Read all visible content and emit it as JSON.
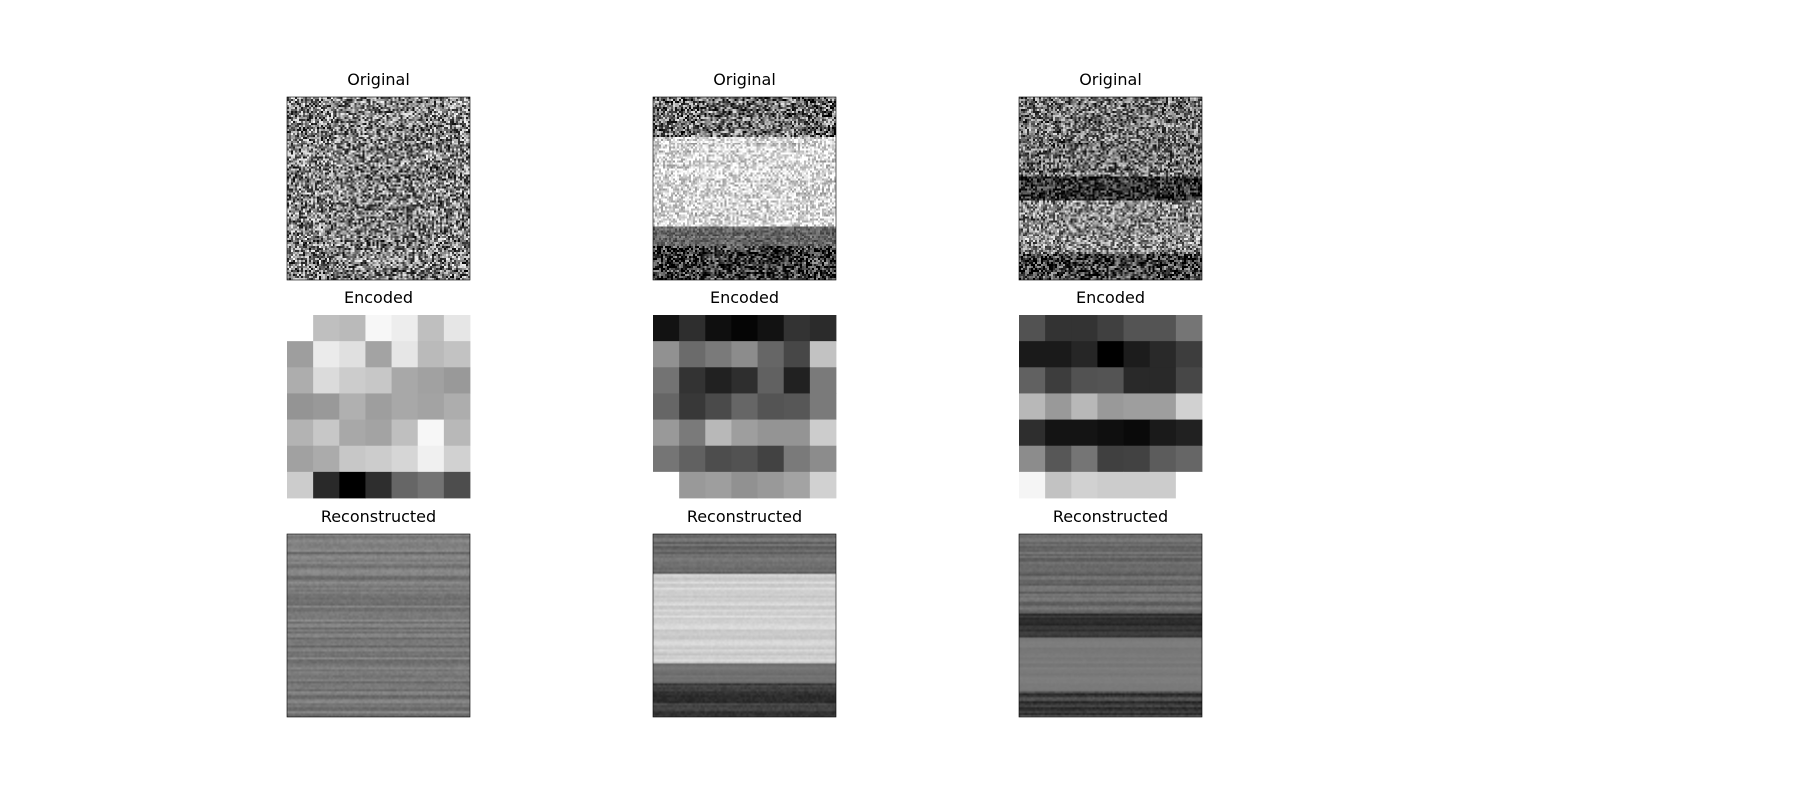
{
  "figure": {
    "background": "#ffffff",
    "rows": [
      {
        "row": "original",
        "title": "Original"
      },
      {
        "row": "encoded",
        "title": "Encoded"
      },
      {
        "row": "reconstructed",
        "title": "Reconstructed"
      }
    ]
  },
  "chart_data": {
    "type": "heatmap",
    "layout": "3 rows x 3 columns of grayscale image panels",
    "colormap": "gray",
    "samples": [
      {
        "original": {
          "pattern": "uniform random noise",
          "bands": [
            {
              "from": 0.0,
              "to": 1.0,
              "mean": 0.5,
              "contrast": 0.45
            }
          ]
        },
        "encoded": {
          "grid": [
            [
              1.0,
              0.75,
              0.73,
              0.97,
              0.93,
              0.75,
              0.9
            ],
            [
              0.62,
              0.92,
              0.88,
              0.64,
              0.9,
              0.73,
              0.76
            ],
            [
              0.68,
              0.86,
              0.8,
              0.78,
              0.66,
              0.63,
              0.6
            ],
            [
              0.58,
              0.6,
              0.69,
              0.62,
              0.66,
              0.64,
              0.68
            ],
            [
              0.7,
              0.78,
              0.66,
              0.64,
              0.75,
              0.97,
              0.72
            ],
            [
              0.63,
              0.67,
              0.78,
              0.8,
              0.84,
              0.94,
              0.82
            ],
            [
              0.8,
              0.16,
              0.0,
              0.18,
              0.4,
              0.45,
              0.3
            ]
          ]
        },
        "reconstructed": {
          "pattern": "smoothed noise",
          "bands": [
            {
              "from": 0.0,
              "to": 1.0,
              "mean": 0.47,
              "contrast": 0.12
            }
          ]
        }
      },
      {
        "original": {
          "pattern": "horizontal bands of noise",
          "bands": [
            {
              "from": 0.0,
              "to": 0.22,
              "mean": 0.42,
              "contrast": 0.45
            },
            {
              "from": 0.22,
              "to": 0.71,
              "mean": 0.85,
              "contrast": 0.25
            },
            {
              "from": 0.71,
              "to": 0.82,
              "mean": 0.4,
              "contrast": 0.15
            },
            {
              "from": 0.82,
              "to": 1.0,
              "mean": 0.22,
              "contrast": 0.4
            }
          ]
        },
        "encoded": {
          "grid": [
            [
              0.07,
              0.18,
              0.06,
              0.02,
              0.07,
              0.2,
              0.17
            ],
            [
              0.57,
              0.42,
              0.48,
              0.55,
              0.4,
              0.28,
              0.76
            ],
            [
              0.45,
              0.2,
              0.13,
              0.18,
              0.38,
              0.13,
              0.48
            ],
            [
              0.4,
              0.22,
              0.29,
              0.4,
              0.33,
              0.34,
              0.48
            ],
            [
              0.6,
              0.48,
              0.72,
              0.62,
              0.58,
              0.58,
              0.8
            ],
            [
              0.46,
              0.38,
              0.3,
              0.32,
              0.26,
              0.48,
              0.55
            ],
            [
              1.0,
              0.6,
              0.62,
              0.57,
              0.6,
              0.64,
              0.82
            ]
          ]
        },
        "reconstructed": {
          "pattern": "smoothed horizontal bands",
          "bands": [
            {
              "from": 0.0,
              "to": 0.22,
              "mean": 0.42,
              "contrast": 0.1
            },
            {
              "from": 0.22,
              "to": 0.71,
              "mean": 0.82,
              "contrast": 0.08
            },
            {
              "from": 0.71,
              "to": 0.82,
              "mean": 0.45,
              "contrast": 0.05
            },
            {
              "from": 0.82,
              "to": 1.0,
              "mean": 0.25,
              "contrast": 0.15
            }
          ]
        }
      },
      {
        "original": {
          "pattern": "horizontal bands of noise",
          "bands": [
            {
              "from": 0.0,
              "to": 0.43,
              "mean": 0.45,
              "contrast": 0.4
            },
            {
              "from": 0.43,
              "to": 0.57,
              "mean": 0.18,
              "contrast": 0.3
            },
            {
              "from": 0.57,
              "to": 0.86,
              "mean": 0.52,
              "contrast": 0.4
            },
            {
              "from": 0.86,
              "to": 1.0,
              "mean": 0.25,
              "contrast": 0.4
            }
          ]
        },
        "encoded": {
          "grid": [
            [
              0.32,
              0.2,
              0.2,
              0.25,
              0.33,
              0.33,
              0.46
            ],
            [
              0.1,
              0.1,
              0.15,
              0.0,
              0.11,
              0.16,
              0.24
            ],
            [
              0.38,
              0.24,
              0.32,
              0.33,
              0.16,
              0.16,
              0.28
            ],
            [
              0.72,
              0.6,
              0.72,
              0.6,
              0.62,
              0.62,
              0.82
            ],
            [
              0.18,
              0.08,
              0.08,
              0.06,
              0.04,
              0.1,
              0.13
            ],
            [
              0.55,
              0.34,
              0.46,
              0.25,
              0.26,
              0.36,
              0.4
            ],
            [
              0.96,
              0.76,
              0.82,
              0.8,
              0.8,
              0.8,
              1.0
            ]
          ]
        },
        "reconstructed": {
          "pattern": "smoothed horizontal bands",
          "bands": [
            {
              "from": 0.0,
              "to": 0.43,
              "mean": 0.42,
              "contrast": 0.1
            },
            {
              "from": 0.43,
              "to": 0.57,
              "mean": 0.2,
              "contrast": 0.08
            },
            {
              "from": 0.57,
              "to": 0.86,
              "mean": 0.48,
              "contrast": 0.03
            },
            {
              "from": 0.86,
              "to": 1.0,
              "mean": 0.25,
              "contrast": 0.15
            }
          ]
        }
      }
    ]
  }
}
